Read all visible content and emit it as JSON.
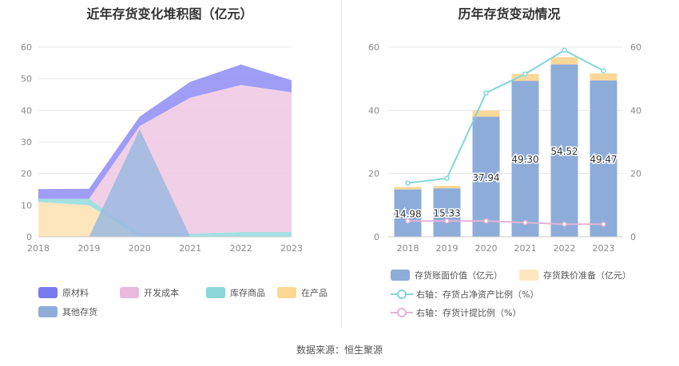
{
  "footer": {
    "source": "数据来源：恒生聚源"
  },
  "legend_left": [
    "原材料",
    "开发成本",
    "库存商品",
    "在产品",
    "其他存货"
  ],
  "legend_right": [
    "存货账面价值（亿元）",
    "存货跌价准备（亿元）",
    "右轴：存货占净资产比例（%）",
    "右轴：存货计提比例（%）"
  ],
  "colors": {
    "raw": "#8e8cf3",
    "dev": "#efc8e3",
    "goods": "#93dbdc",
    "wip": "#fde2b3",
    "other": "#9cb8e0",
    "bar": "#8eacd9",
    "reserve": "#fbd89a",
    "line1": "#80d6dc",
    "line2": "#e4b4d6"
  },
  "chart_data": [
    {
      "type": "area",
      "title": "近年存货变化堆积图（亿元）",
      "x": [
        "2018",
        "2019",
        "2020",
        "2021",
        "2022",
        "2023"
      ],
      "ylim": [
        0,
        60
      ],
      "yticks": [
        0,
        10,
        20,
        30,
        40,
        50,
        60
      ],
      "series": [
        {
          "name": "在产品",
          "values": [
            11,
            10,
            0,
            0,
            0,
            0
          ]
        },
        {
          "name": "库存商品",
          "values": [
            1,
            2,
            1,
            1,
            1.5,
            1.5
          ]
        },
        {
          "name": "开发成本",
          "values": [
            0,
            0,
            34,
            43,
            46.5,
            44.2
          ]
        },
        {
          "name": "原材料",
          "values": [
            3.1,
            3.2,
            3,
            5,
            6.5,
            3.8
          ]
        },
        {
          "name": "其他存货",
          "values": [
            0,
            0,
            34,
            0,
            0,
            0
          ]
        }
      ]
    },
    {
      "type": "bar",
      "title": "历年存货变动情况",
      "categories": [
        "2018",
        "2019",
        "2020",
        "2021",
        "2022",
        "2023"
      ],
      "ylim": [
        0,
        60
      ],
      "yticks": [
        0,
        20,
        40,
        60
      ],
      "y2lim": [
        0,
        60
      ],
      "y2ticks": [
        0,
        20,
        40,
        60
      ],
      "series": [
        {
          "name": "存货账面价值（亿元）",
          "values": [
            14.98,
            15.33,
            37.94,
            49.3,
            54.52,
            49.47
          ]
        },
        {
          "name": "存货跌价准备（亿元）",
          "values": [
            0.8,
            0.8,
            2.0,
            2.2,
            2.3,
            2.2
          ]
        },
        {
          "name": "右轴：存货占净资产比例（%）",
          "axis": "right",
          "values": [
            17,
            18.5,
            45.5,
            51.5,
            59,
            52.5
          ]
        },
        {
          "name": "右轴：存货计提比例（%）",
          "axis": "right",
          "values": [
            5,
            5,
            5,
            4.5,
            4,
            4
          ]
        }
      ]
    }
  ]
}
